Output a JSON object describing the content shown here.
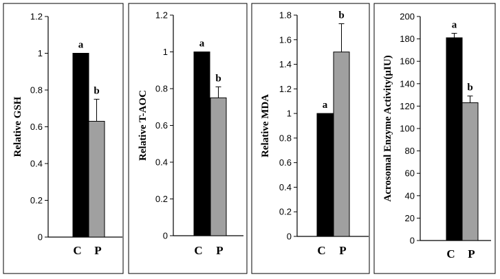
{
  "chart_data": [
    {
      "type": "bar",
      "ylabel": "Relative GSH",
      "categories": [
        "C",
        "P"
      ],
      "values": [
        1.0,
        0.63
      ],
      "errors": [
        0,
        0.12
      ],
      "significance": [
        "a",
        "b"
      ],
      "ylim": [
        0,
        1.2
      ],
      "yticks": [
        0,
        0.2,
        0.4,
        0.6,
        0.8,
        1,
        1.2
      ],
      "ytick_labels": [
        "0",
        "0.2",
        "0.4",
        "0.6",
        "0.8",
        "1",
        "1.2"
      ],
      "colors": [
        "#000000",
        "#a0a0a0"
      ]
    },
    {
      "type": "bar",
      "ylabel": "Relative T-AOC",
      "categories": [
        "C",
        "P"
      ],
      "values": [
        1.0,
        0.75
      ],
      "errors": [
        0,
        0.06
      ],
      "significance": [
        "a",
        "b"
      ],
      "ylim": [
        0,
        1.2
      ],
      "yticks": [
        0,
        0.2,
        0.4,
        0.6,
        0.8,
        1,
        1.2
      ],
      "ytick_labels": [
        "0",
        "0.2",
        "0.4",
        "0.6",
        "0.8",
        "1",
        "1.2"
      ],
      "colors": [
        "#000000",
        "#a0a0a0"
      ]
    },
    {
      "type": "bar",
      "ylabel": "Relative  MDA",
      "categories": [
        "C",
        "P"
      ],
      "values": [
        1.0,
        1.5
      ],
      "errors": [
        0,
        0.23
      ],
      "significance": [
        "a",
        "b"
      ],
      "ylim": [
        0,
        1.8
      ],
      "yticks": [
        0,
        0.2,
        0.4,
        0.6,
        0.8,
        1,
        1.2,
        1.4,
        1.6,
        1.8
      ],
      "ytick_labels": [
        "0",
        "0.2",
        "0.4",
        "0.6",
        "0.8",
        "1",
        "1.2",
        "1.4",
        "1.6",
        "1.8"
      ],
      "colors": [
        "#000000",
        "#a0a0a0"
      ]
    },
    {
      "type": "bar",
      "ylabel": "Acrosomal Enzyme Activity(μIU)",
      "categories": [
        "C",
        "P"
      ],
      "values": [
        181,
        123
      ],
      "errors": [
        4,
        6
      ],
      "significance": [
        "a",
        "b"
      ],
      "ylim": [
        0,
        200
      ],
      "yticks": [
        0,
        20,
        40,
        60,
        80,
        100,
        120,
        140,
        160,
        180,
        200
      ],
      "ytick_labels": [
        "0",
        "20",
        "40",
        "60",
        "80",
        "100",
        "120",
        "140",
        "160",
        "180",
        "200"
      ],
      "colors": [
        "#000000",
        "#a0a0a0"
      ]
    }
  ]
}
